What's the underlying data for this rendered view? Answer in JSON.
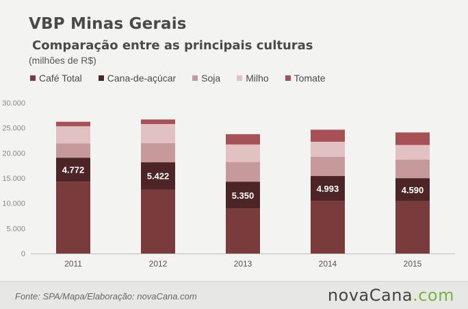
{
  "header": {
    "title": "VBP Minas Gerais",
    "subtitle": "Comparação entre as principais culturas",
    "units": "(milhões de R$)"
  },
  "footer": {
    "source": "Fonte: SPA/Mapa/Elaboração: novaCana.com",
    "logo_main": "novaCana",
    "logo_suffix": ".com"
  },
  "colors": {
    "cafe": "#7a3b3d",
    "cana": "#4e2527",
    "soja": "#c6999a",
    "milho": "#e2c1c2",
    "tomate": "#a55155",
    "axis_text": "#888888",
    "logo_accent": "#7ab33e"
  },
  "chart_data": {
    "type": "bar",
    "stacked": true,
    "categories": [
      "2011",
      "2012",
      "2013",
      "2014",
      "2015"
    ],
    "ylim": [
      0,
      30000
    ],
    "yticks": [
      "0",
      "5.000",
      "10.000",
      "15.000",
      "20.000",
      "25.000",
      "30.000"
    ],
    "grid": false,
    "legend_position": "top-left",
    "series": [
      {
        "name": "Café Total",
        "key": "cafe",
        "values": [
          14300,
          12750,
          8950,
          10450,
          10400
        ]
      },
      {
        "name": "Cana-de-açúcar",
        "key": "cana",
        "values": [
          4772,
          5422,
          5350,
          4993,
          4590
        ]
      },
      {
        "name": "Soja",
        "key": "soja",
        "values": [
          2850,
          3800,
          3900,
          3800,
          3700
        ]
      },
      {
        "name": "Milho",
        "key": "milho",
        "values": [
          3400,
          3800,
          3500,
          3000,
          2900
        ]
      },
      {
        "name": "Tomate",
        "key": "tomate",
        "values": [
          900,
          900,
          2050,
          2400,
          2500
        ]
      }
    ],
    "data_labels": {
      "series": "Cana-de-açúcar",
      "labels": [
        "4.772",
        "5.422",
        "5.350",
        "4.993",
        "4.590"
      ]
    }
  }
}
